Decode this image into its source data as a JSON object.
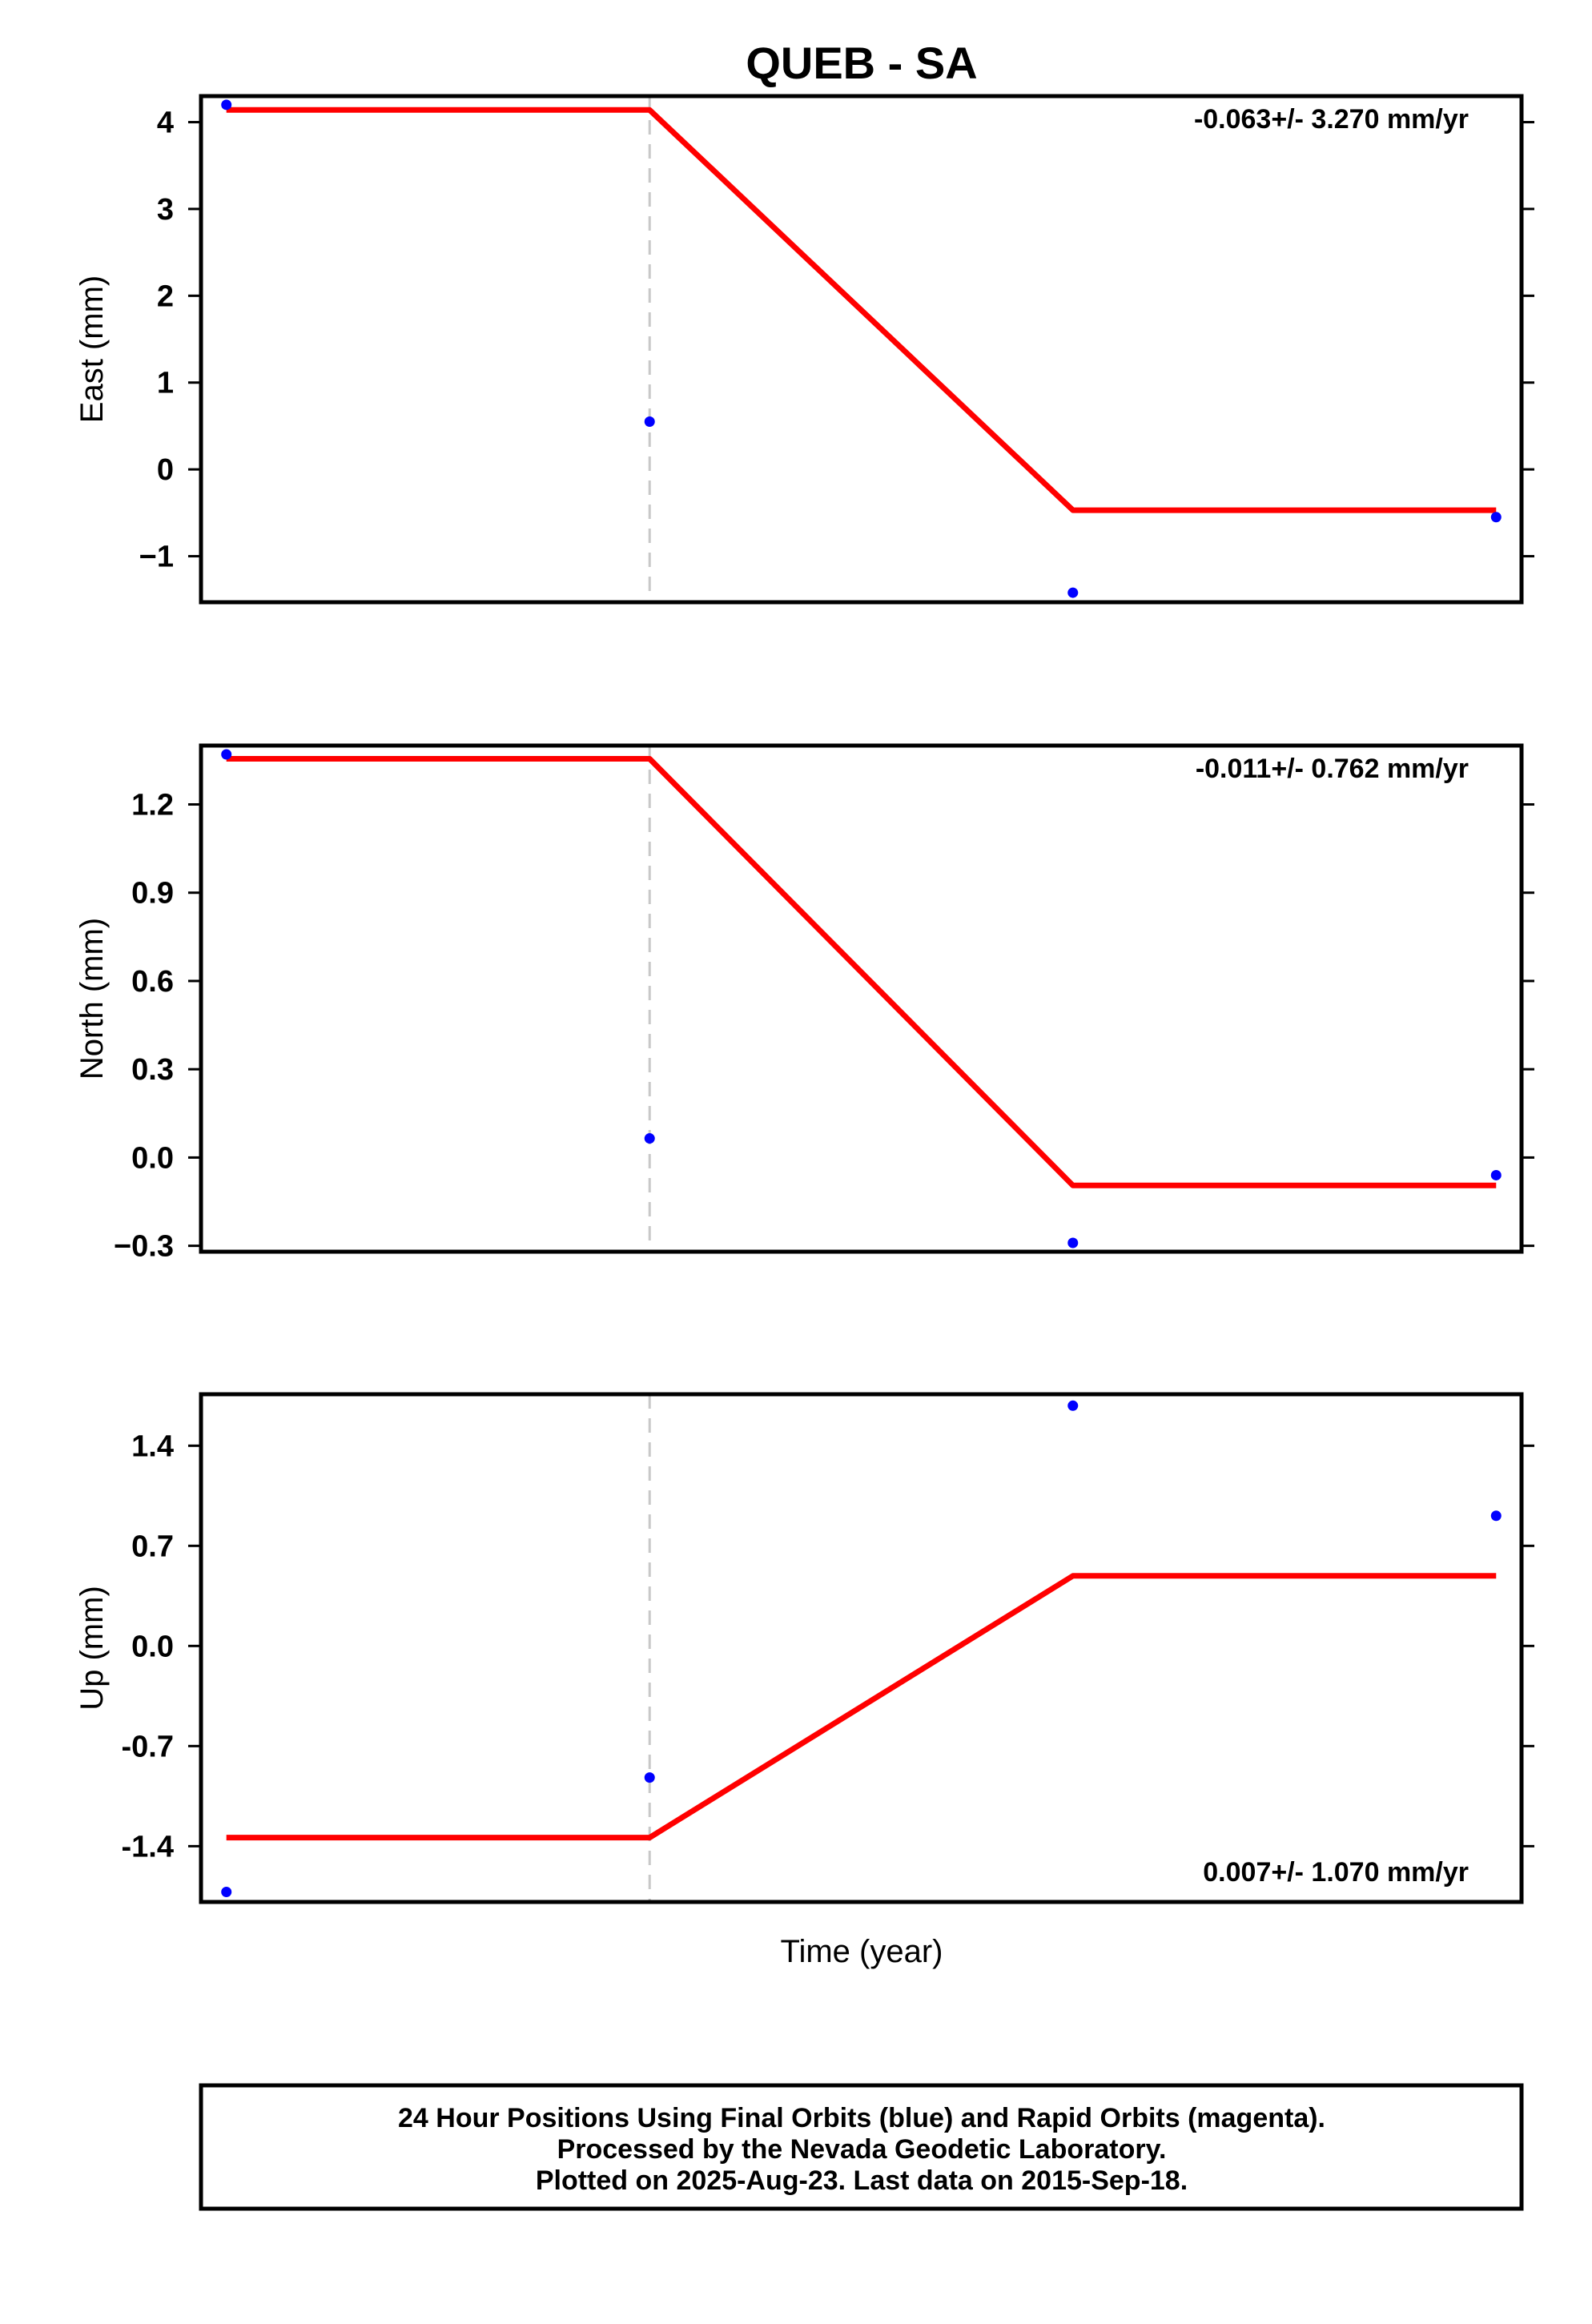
{
  "chart_data": {
    "type": "line",
    "title": "QUEB - SA",
    "xlabel": "Time (year)",
    "x_ticks_shown": false,
    "epochs": [
      0,
      1,
      2,
      3
    ],
    "xlim": [
      -0.06,
      3.06
    ],
    "series_colors": {
      "observations": "#0000ff",
      "model": "#ff0000",
      "offset_marker": "#c8c8c8"
    },
    "panels": [
      {
        "name": "east",
        "ylabel": "East (mm)",
        "ylim": [
          -1.53,
          4.3
        ],
        "yticks": [
          4,
          3,
          2,
          1,
          0,
          -1
        ],
        "ytick_labels": [
          "4",
          "3",
          "2",
          "1",
          "0",
          "−1"
        ],
        "rate_text": "-0.063+/- 3.270 mm/yr",
        "rate_position": "top-right",
        "offset_marker_x": 1,
        "observations": [
          4.2,
          0.55,
          -1.42,
          -0.55
        ],
        "model": [
          4.14,
          4.14,
          -0.47,
          -0.47
        ]
      },
      {
        "name": "north",
        "ylabel": "North (mm)",
        "ylim": [
          -0.32,
          1.4
        ],
        "yticks": [
          1.2,
          0.9,
          0.6,
          0.3,
          0.0,
          -0.3
        ],
        "ytick_labels": [
          "1.2",
          "0.9",
          "0.6",
          "0.3",
          "0.0",
          "−0.3"
        ],
        "rate_text": "-0.011+/- 0.762 mm/yr",
        "rate_position": "top-right",
        "offset_marker_x": 1,
        "observations": [
          1.37,
          0.065,
          -0.29,
          -0.06
        ],
        "model": [
          1.355,
          1.355,
          -0.095,
          -0.095
        ]
      },
      {
        "name": "up",
        "ylabel": "Up (mm)",
        "ylim": [
          -1.79,
          1.76
        ],
        "yticks": [
          1.4,
          0.7,
          0.0,
          -0.7,
          -1.4
        ],
        "ytick_labels": [
          "1.4",
          "0.7",
          "0.0",
          "-0.7",
          "-1.4"
        ],
        "rate_text": "0.007+/- 1.070 mm/yr",
        "rate_position": "bottom-right",
        "offset_marker_x": 1,
        "observations": [
          -1.72,
          -0.92,
          1.68,
          0.91
        ],
        "model": [
          -1.34,
          -1.34,
          0.49,
          0.49
        ]
      }
    ]
  },
  "footer": {
    "line1": "24 Hour Positions Using Final Orbits (blue) and Rapid Orbits (magenta).",
    "line2": "Processed by the Nevada Geodetic Laboratory.",
    "line3": "Plotted on 2025-Aug-23. Last data on 2015-Sep-18."
  }
}
